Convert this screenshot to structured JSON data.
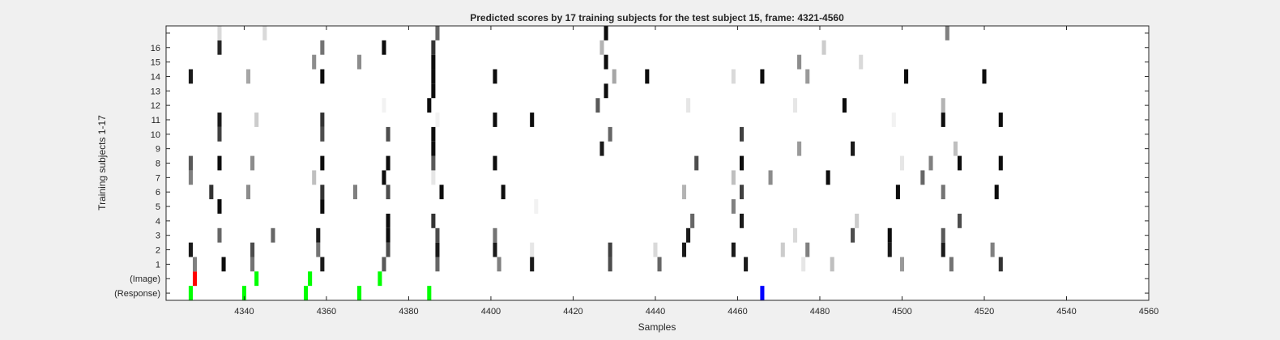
{
  "chart_data": {
    "type": "heatmap",
    "title": "Predicted scores by 17 training subjects for the test subject 15, frame: 4321-4560",
    "xlabel": "Samples",
    "ylabel": "Training subjects 1-17",
    "xlim": [
      4321,
      4560
    ],
    "xticks": [
      4340,
      4360,
      4380,
      4400,
      4420,
      4440,
      4460,
      4480,
      4500,
      4520,
      4540,
      4560
    ],
    "rows": [
      "(Response)",
      "(Image)",
      "1",
      "2",
      "3",
      "4",
      "5",
      "6",
      "7",
      "8",
      "9",
      "10",
      "11",
      "12",
      "13",
      "14",
      "15",
      "16",
      ""
    ],
    "grid": false,
    "colors": {
      "image": "#ff0000",
      "response_green": "#00ff00",
      "response_blue": "#0000ff",
      "background": "#ffffff"
    },
    "marks": {
      "(Response)": [
        [
          4327,
          "#00ff00"
        ],
        [
          4340,
          "#00ff00"
        ],
        [
          4355,
          "#00ff00"
        ],
        [
          4368,
          "#00ff00"
        ],
        [
          4385,
          "#00ff00"
        ],
        [
          4466,
          "#0000ff"
        ]
      ],
      "(Image)": [
        [
          4328,
          "#ff0000"
        ],
        [
          4343,
          "#00ff00"
        ],
        [
          4356,
          "#00ff00"
        ],
        [
          4373,
          "#00ff00"
        ]
      ],
      "1": [
        [
          4328,
          0.5
        ],
        [
          4335,
          0.05
        ],
        [
          4342,
          0.45
        ],
        [
          4359,
          0.1
        ],
        [
          4374,
          0.35
        ],
        [
          4387,
          0.4
        ],
        [
          4402,
          0.5
        ],
        [
          4410,
          0.1
        ],
        [
          4429,
          0.3
        ],
        [
          4441,
          0.4
        ],
        [
          4462,
          0.1
        ],
        [
          4476,
          0.9
        ],
        [
          4483,
          0.75
        ],
        [
          4500,
          0.6
        ],
        [
          4512,
          0.45
        ],
        [
          4524,
          0.2
        ]
      ],
      "2": [
        [
          4327,
          0.1
        ],
        [
          4342,
          0.3
        ],
        [
          4358,
          0.45
        ],
        [
          4375,
          0.3
        ],
        [
          4387,
          0.1
        ],
        [
          4401,
          0.1
        ],
        [
          4410,
          0.9
        ],
        [
          4429,
          0.25
        ],
        [
          4440,
          0.85
        ],
        [
          4447,
          0.1
        ],
        [
          4459,
          0.1
        ],
        [
          4471,
          0.8
        ],
        [
          4477,
          0.5
        ],
        [
          4497,
          0.1
        ],
        [
          4510,
          0.1
        ],
        [
          4522,
          0.5
        ]
      ],
      "3": [
        [
          4334,
          0.4
        ],
        [
          4347,
          0.4
        ],
        [
          4358,
          0.1
        ],
        [
          4375,
          0.05
        ],
        [
          4387,
          0.3
        ],
        [
          4401,
          0.45
        ],
        [
          4448,
          0.1
        ],
        [
          4474,
          0.85
        ],
        [
          4488,
          0.3
        ],
        [
          4497,
          0.05
        ],
        [
          4510,
          0.35
        ]
      ],
      "4": [
        [
          4375,
          0.05
        ],
        [
          4386,
          0.2
        ],
        [
          4449,
          0.4
        ],
        [
          4461,
          0.1
        ],
        [
          4489,
          0.8
        ],
        [
          4514,
          0.3
        ]
      ],
      "5": [
        [
          4334,
          0.05
        ],
        [
          4359,
          0.05
        ],
        [
          4411,
          0.95
        ],
        [
          4459,
          0.5
        ]
      ],
      "6": [
        [
          4332,
          0.2
        ],
        [
          4341,
          0.55
        ],
        [
          4359,
          0.2
        ],
        [
          4367,
          0.5
        ],
        [
          4375,
          0.3
        ],
        [
          4388,
          0.05
        ],
        [
          4403,
          0.05
        ],
        [
          4447,
          0.7
        ],
        [
          4461,
          0.25
        ],
        [
          4499,
          0.05
        ],
        [
          4510,
          0.45
        ],
        [
          4523,
          0.05
        ]
      ],
      "7": [
        [
          4327,
          0.5
        ],
        [
          4357,
          0.75
        ],
        [
          4374,
          0.05
        ],
        [
          4386,
          0.9
        ],
        [
          4459,
          0.75
        ],
        [
          4468,
          0.55
        ],
        [
          4482,
          0.05
        ],
        [
          4505,
          0.4
        ]
      ],
      "8": [
        [
          4327,
          0.35
        ],
        [
          4334,
          0.05
        ],
        [
          4342,
          0.55
        ],
        [
          4359,
          0.05
        ],
        [
          4375,
          0.05
        ],
        [
          4386,
          0.35
        ],
        [
          4401,
          0.05
        ],
        [
          4450,
          0.3
        ],
        [
          4461,
          0.05
        ],
        [
          4500,
          0.9
        ],
        [
          4507,
          0.5
        ],
        [
          4514,
          0.05
        ],
        [
          4524,
          0.05
        ]
      ],
      "9": [
        [
          4386,
          0.05
        ],
        [
          4427,
          0.1
        ],
        [
          4475,
          0.6
        ],
        [
          4488,
          0.1
        ],
        [
          4513,
          0.75
        ]
      ],
      "10": [
        [
          4334,
          0.25
        ],
        [
          4359,
          0.3
        ],
        [
          4375,
          0.3
        ],
        [
          4386,
          0.05
        ],
        [
          4429,
          0.4
        ],
        [
          4461,
          0.25
        ]
      ],
      "11": [
        [
          4334,
          0.1
        ],
        [
          4343,
          0.8
        ],
        [
          4359,
          0.2
        ],
        [
          4387,
          0.95
        ],
        [
          4401,
          0.05
        ],
        [
          4410,
          0.05
        ],
        [
          4498,
          0.95
        ],
        [
          4510,
          0.05
        ],
        [
          4524,
          0.05
        ]
      ],
      "12": [
        [
          4374,
          0.95
        ],
        [
          4385,
          0.05
        ],
        [
          4426,
          0.35
        ],
        [
          4448,
          0.9
        ],
        [
          4474,
          0.9
        ],
        [
          4486,
          0.05
        ],
        [
          4510,
          0.7
        ]
      ],
      "13": [
        [
          4386,
          0.05
        ],
        [
          4428,
          0.05
        ]
      ],
      "14": [
        [
          4327,
          0.1
        ],
        [
          4341,
          0.65
        ],
        [
          4359,
          0.05
        ],
        [
          4386,
          0.05
        ],
        [
          4401,
          0.05
        ],
        [
          4430,
          0.65
        ],
        [
          4438,
          0.05
        ],
        [
          4459,
          0.85
        ],
        [
          4466,
          0.05
        ],
        [
          4477,
          0.6
        ],
        [
          4501,
          0.05
        ],
        [
          4520,
          0.05
        ]
      ],
      "15": [
        [
          4357,
          0.55
        ],
        [
          4368,
          0.55
        ],
        [
          4386,
          0.05
        ],
        [
          4428,
          0.05
        ],
        [
          4475,
          0.55
        ],
        [
          4490,
          0.85
        ]
      ],
      "16": [
        [
          4334,
          0.15
        ],
        [
          4359,
          0.45
        ],
        [
          4374,
          0.05
        ],
        [
          4386,
          0.2
        ],
        [
          4427,
          0.7
        ],
        [
          4481,
          0.8
        ]
      ],
      "": [
        [
          4334,
          0.85
        ],
        [
          4345,
          0.85
        ],
        [
          4387,
          0.4
        ],
        [
          4428,
          0.05
        ],
        [
          4511,
          0.5
        ]
      ]
    }
  }
}
